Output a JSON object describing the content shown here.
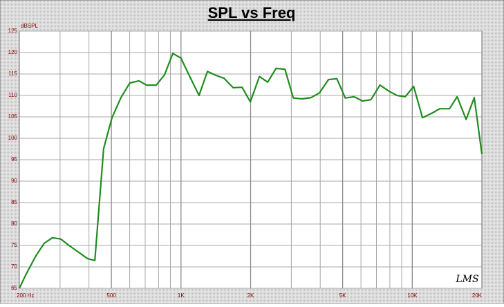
{
  "chart_data": {
    "type": "line",
    "title": "SPL vs Freq",
    "y_label": "dBSPL",
    "annotation": "LMS",
    "log_x": true,
    "grid": true,
    "xlim": [
      200,
      20000
    ],
    "ylim": [
      65,
      125
    ],
    "xticks": [
      {
        "value": 200,
        "label": "200  Hz"
      },
      500,
      {
        "value": 1000,
        "label": "1K"
      },
      {
        "value": 2000,
        "label": "2K"
      },
      {
        "value": 5000,
        "label": "5K"
      },
      {
        "value": 10000,
        "label": "10K"
      },
      {
        "value": 20000,
        "label": "20K"
      }
    ],
    "x_minor_grid": [
      300,
      400,
      600,
      700,
      800,
      900,
      3000,
      4000,
      6000,
      7000,
      8000,
      9000
    ],
    "yticks": [
      65,
      70,
      75,
      80,
      85,
      90,
      95,
      100,
      105,
      110,
      115,
      120,
      125
    ],
    "series": [
      {
        "name": "SPL",
        "color": "#1f8c1f",
        "x": [
          200,
          213,
          236,
          256,
          278,
          302,
          328,
          361,
          395,
          424,
          463,
          503,
          550,
          601,
          658,
          709,
          782,
          849,
          922,
          1000,
          1096,
          1197,
          1301,
          1413,
          1535,
          1679,
          1836,
          1995,
          2183,
          2371,
          2576,
          2816,
          3058,
          3343,
          3656,
          3971,
          4343,
          4720,
          5131,
          5609,
          6097,
          6625,
          7248,
          7925,
          8580,
          9320,
          10140,
          11070,
          12110,
          13160,
          14490,
          15630,
          17100,
          18540,
          20000
        ],
        "values": [
          65,
          68.1,
          72.6,
          75.5,
          76.8,
          76.5,
          75,
          73.4,
          71.9,
          71.5,
          97.6,
          104.8,
          109.5,
          112.9,
          113.4,
          112.4,
          112.4,
          114.8,
          119.8,
          118.7,
          114.2,
          110,
          115.6,
          114.7,
          114,
          111.8,
          111.9,
          108.5,
          114.4,
          113.1,
          116.3,
          116.1,
          109.4,
          109.2,
          109.5,
          110.6,
          113.7,
          113.9,
          109.4,
          109.7,
          108.7,
          109,
          112.4,
          111,
          110,
          109.7,
          112.1,
          104.8,
          105.8,
          106.9,
          106.9,
          109.7,
          104.4,
          109.5,
          96.3
        ]
      }
    ]
  }
}
